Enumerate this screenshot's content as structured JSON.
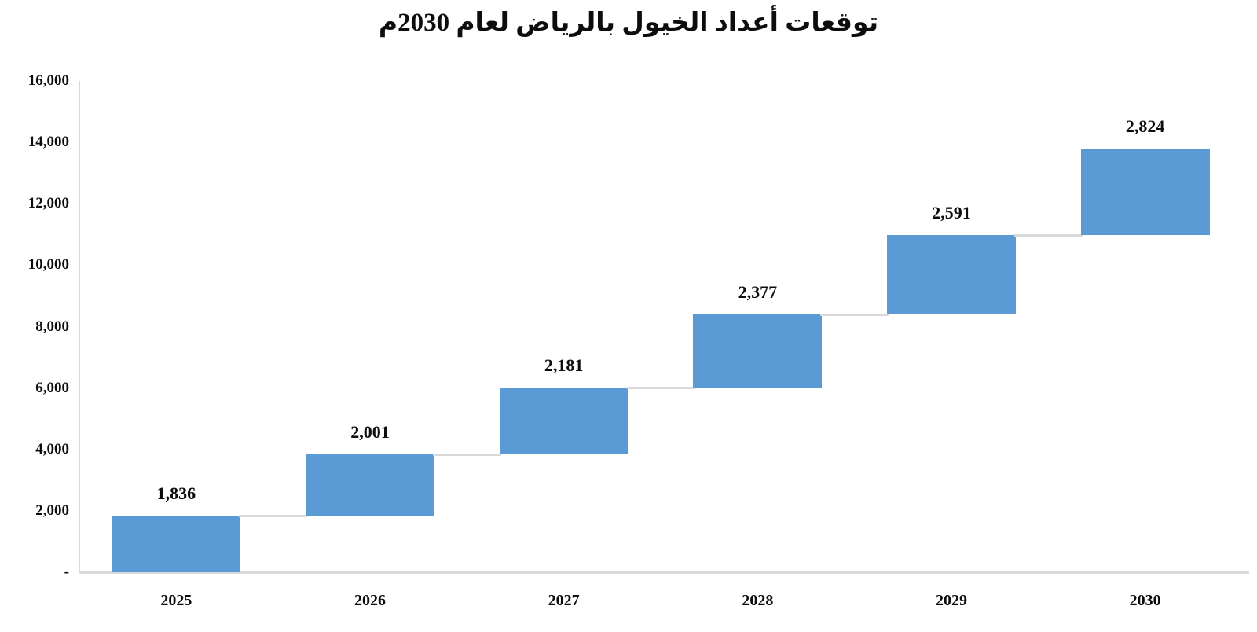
{
  "title": "توقعات أعداد الخيول بالرياض لعام 2030م",
  "chart_data": {
    "type": "bar",
    "subtype": "waterfall",
    "title": "توقعات أعداد الخيول بالرياض لعام 2030م",
    "categories": [
      "2025",
      "2026",
      "2027",
      "2028",
      "2029",
      "2030"
    ],
    "values": [
      1836,
      2001,
      2181,
      2377,
      2591,
      2824
    ],
    "cumulative_start": [
      0,
      1836,
      3837,
      6018,
      8395,
      10986
    ],
    "cumulative_end": [
      1836,
      3837,
      6018,
      8395,
      10986,
      13810
    ],
    "data_labels": [
      "1,836",
      "2,001",
      "2,181",
      "2,377",
      "2,591",
      "2,824"
    ],
    "xlabel": "",
    "ylabel": "",
    "y_axis": {
      "min": 0,
      "max": 16000,
      "step": 2000,
      "tick_labels": [
        "-",
        "2,000",
        "4,000",
        "6,000",
        "8,000",
        "10,000",
        "12,000",
        "14,000",
        "16,000"
      ]
    },
    "grid": false,
    "legend": false,
    "colors": {
      "bar": "#5b9bd5",
      "connector": "#d9d9d9",
      "axis": "#d9d9d9",
      "text": "#0d0d0d",
      "background": "#ffffff"
    }
  }
}
